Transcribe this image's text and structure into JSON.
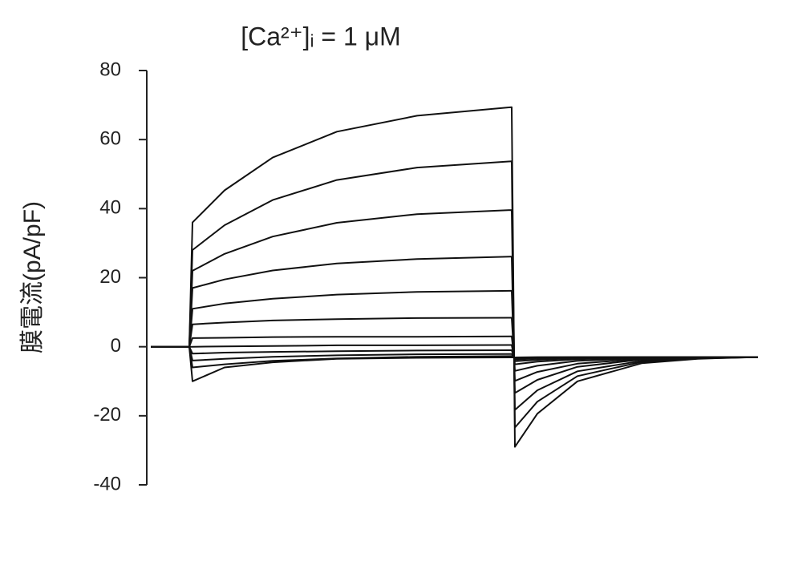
{
  "chart_data": {
    "type": "line",
    "title": "[Ca²⁺]ᵢ = 1 μM",
    "y_label": "膜電流(pA/pF)",
    "color": "#111111",
    "x": [
      0,
      48,
      52,
      92,
      152,
      232,
      332,
      450,
      454,
      482,
      532,
      612,
      682,
      757
    ],
    "xlim": [
      0,
      757
    ],
    "ylim": [
      -40,
      80
    ],
    "yticks": [
      80,
      60,
      40,
      20,
      0,
      -20,
      -40
    ],
    "series": [
      {
        "values": [
          0,
          0,
          36,
          45.3,
          54.8,
          62.3,
          66.9,
          69.4,
          -29,
          -19.4,
          -10.0,
          -4.8,
          -3.5,
          -3
        ]
      },
      {
        "values": [
          0,
          0,
          28,
          35.2,
          42.5,
          48.3,
          51.9,
          53.7,
          -23.4,
          -15.9,
          -8.5,
          -4.4,
          -3.4,
          -3
        ]
      },
      {
        "values": [
          0,
          0,
          22,
          26.9,
          31.9,
          35.9,
          38.4,
          39.6,
          -18.3,
          -12.6,
          -7.1,
          -4.1,
          -3.3,
          -3
        ]
      },
      {
        "values": [
          0,
          0,
          17,
          19.5,
          22.1,
          24.1,
          25.4,
          26.1,
          -13.4,
          -9.6,
          -5.8,
          -3.7,
          -3.2,
          -3
        ]
      },
      {
        "values": [
          0,
          0,
          11,
          12.5,
          13.9,
          15.1,
          15.9,
          16.2,
          -9.9,
          -7.3,
          -4.9,
          -3.5,
          -3.1,
          -3
        ]
      },
      {
        "values": [
          0,
          0,
          6.5,
          7.0,
          7.6,
          8.0,
          8.3,
          8.4,
          -7,
          -5.5,
          -4.1,
          -3.3,
          -3.1,
          -3
        ]
      },
      {
        "values": [
          0,
          0,
          2.5,
          2.6,
          2.8,
          2.9,
          2.9,
          3,
          -5.1,
          -4.3,
          -3.6,
          -3.1,
          -3,
          -3
        ]
      },
      {
        "values": [
          0,
          0,
          0,
          0.1,
          0.2,
          0.4,
          0.4,
          0.5,
          -4.2,
          -3.8,
          -3.3,
          -3.1,
          -3,
          -3
        ]
      },
      {
        "values": [
          0,
          0,
          -2,
          -1.7,
          -1.5,
          -1.3,
          -1.1,
          -1,
          -3.7,
          -3.4,
          -3.2,
          -3,
          -3,
          -3
        ]
      },
      {
        "values": [
          0,
          0,
          -4,
          -3.5,
          -2.9,
          -2.5,
          -2.2,
          -2.1,
          -3.3,
          -3.2,
          -3.1,
          -3,
          -3,
          -3
        ]
      },
      {
        "values": [
          0,
          0,
          -6,
          -5.1,
          -4.1,
          -3.4,
          -2.9,
          -2.7,
          -3.2,
          -3.1,
          -3,
          -3,
          -3,
          -3
        ]
      },
      {
        "values": [
          0,
          0,
          -10,
          -6,
          -4.5,
          -3.5,
          -3.2,
          -3.1,
          -3.1,
          -3,
          -3,
          -3,
          -3,
          -3
        ]
      }
    ]
  }
}
